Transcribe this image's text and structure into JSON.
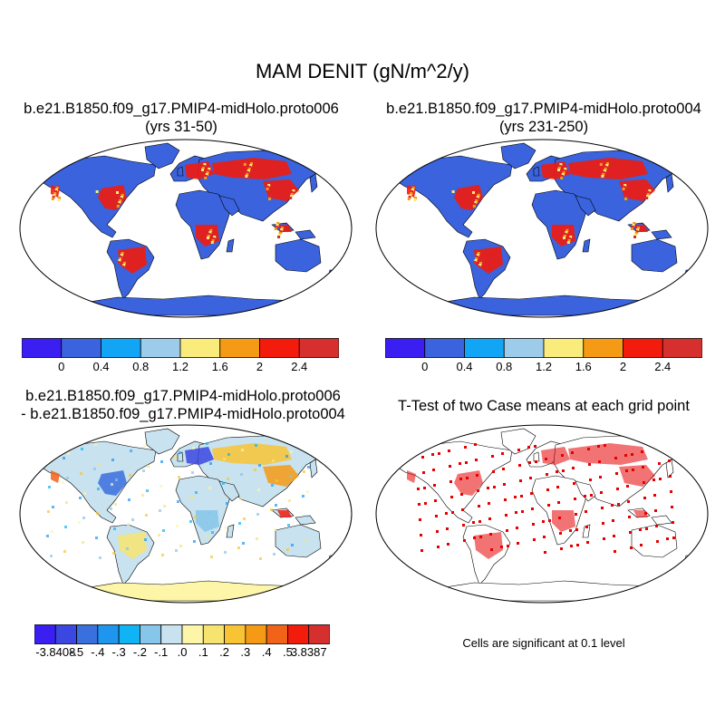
{
  "main_title": "MAM DENIT (gN/m^2/y)",
  "panels": [
    {
      "id": "case1",
      "title_line1": "b.e21.B1850.f09_g17.PMIP4-midHolo.proto006",
      "title_line2": "(yrs 31-50)"
    },
    {
      "id": "case2",
      "title_line1": "b.e21.B1850.f09_g17.PMIP4-midHolo.proto004",
      "title_line2": "(yrs 231-250)"
    },
    {
      "id": "difference",
      "title_line1": "b.e21.B1850.f09_g17.PMIP4-midHolo.proto006",
      "title_line2": "- b.e21.B1850.f09_g17.PMIP4-midHolo.proto004"
    },
    {
      "id": "ttest",
      "title_line1": "T-Test of two Case means at each grid point",
      "title_line2": ""
    }
  ],
  "colorbar_abs": {
    "colors": [
      "#3b1ff2",
      "#3a63dd",
      "#12a5f5",
      "#9dcbea",
      "#f9ec7c",
      "#f59a14",
      "#f21b0c",
      "#d6302e"
    ],
    "labels": [
      "0",
      "0.4",
      "0.8",
      "1.2",
      "1.6",
      "2",
      "2.4"
    ]
  },
  "colorbar_diff": {
    "colors": [
      "#3b1ff2",
      "#3a47e0",
      "#3a6fde",
      "#1e96f0",
      "#10b4f5",
      "#86c6ea",
      "#c8e2ef",
      "#fdf5a8",
      "#f7e470",
      "#f8c434",
      "#f59a14",
      "#f2631a",
      "#f21b0c",
      "#d6302e"
    ],
    "labels": [
      "-3.8408",
      "-.5",
      "-.4",
      "-.3",
      "-.2",
      "-.1",
      ".0",
      ".1",
      ".2",
      ".3",
      ".4",
      ".5",
      "3.8387"
    ]
  },
  "significance_note": "Cells are significant at 0.1 level",
  "legend_colors": {
    "ocean": "#ffffff",
    "low_value_land": "#3a63dd",
    "antarctica_diff": "#fdf5a8",
    "significant_cells": "#e60000"
  }
}
